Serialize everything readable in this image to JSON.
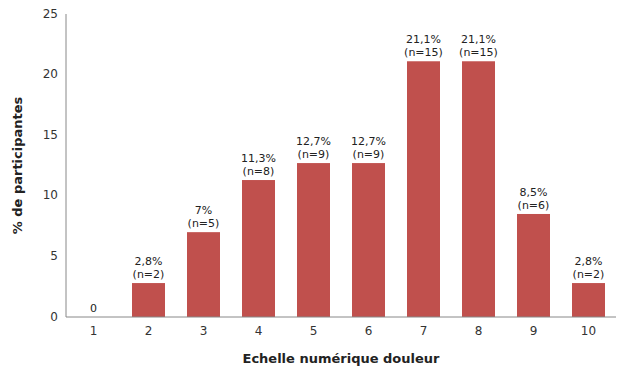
{
  "chart_data": {
    "type": "bar",
    "categories": [
      1,
      2,
      3,
      4,
      5,
      6,
      7,
      8,
      9,
      10
    ],
    "values": [
      0,
      2.8,
      7.0,
      11.3,
      12.7,
      12.7,
      21.1,
      21.1,
      8.5,
      2.8
    ],
    "value_labels": [
      "0",
      "2,8%\n(n=2)",
      "7%\n(n=5)",
      "11,3%\n(n=8)",
      "12,7%\n(n=9)",
      "12,7%\n(n=9)",
      "21,1%\n(n=15)",
      "21,1%\n(n=15)",
      "8,5%\n(n=6)",
      "2,8%\n(n=2)"
    ],
    "data_labels": true,
    "color": "#c0504d",
    "xlabel": "Echelle numérique douleur",
    "ylabel": "% de participantes",
    "ylim": [
      0,
      25
    ],
    "yticks": [
      0,
      5,
      10,
      15,
      20,
      25
    ],
    "grid": false
  }
}
